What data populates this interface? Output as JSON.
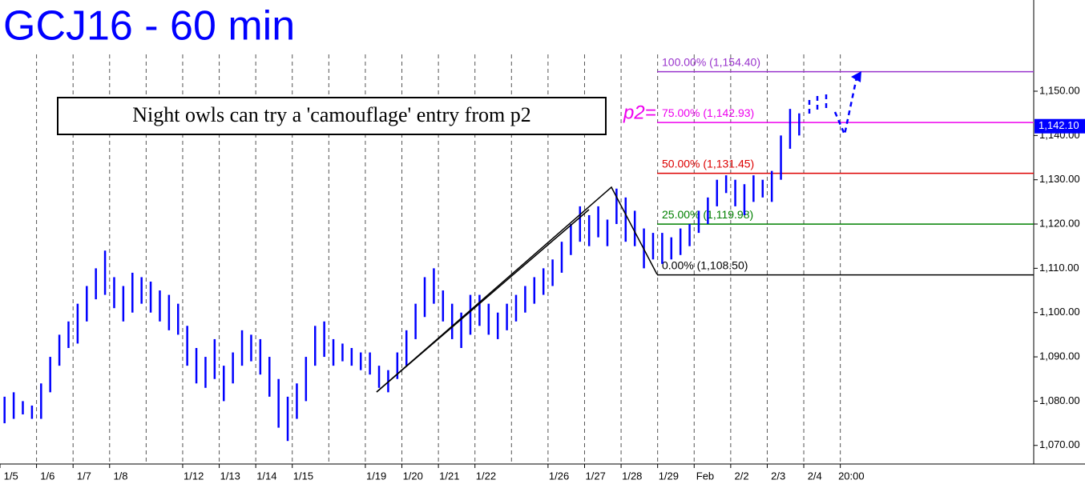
{
  "chart_data": {
    "type": "hilo",
    "title": "GCJ16 - 60 min",
    "annotation": "Night owls can try a 'camouflage' entry from p2",
    "pivot_label": "p2=",
    "color": "#0000ff",
    "ylim": [
      1065.8,
      1170.6
    ],
    "yticks": [
      {
        "value": 1070,
        "label": "1,070.00"
      },
      {
        "value": 1080,
        "label": "1,080.00"
      },
      {
        "value": 1090,
        "label": "1,090.00"
      },
      {
        "value": 1100,
        "label": "1,100.00"
      },
      {
        "value": 1110,
        "label": "1,110.00"
      },
      {
        "value": 1120,
        "label": "1,120.00"
      },
      {
        "value": 1130,
        "label": "1,130.00"
      },
      {
        "value": 1140,
        "label": "1,140.00"
      },
      {
        "value": 1150,
        "label": "1,150.00"
      }
    ],
    "last_price": {
      "value": 1142.1,
      "label": "1,142.10"
    },
    "levels": [
      {
        "label": "100.00% (1,154.40)",
        "value": 1154.4,
        "color": "#9933cc"
      },
      {
        "label": "75.00% (1,142.93)",
        "value": 1142.93,
        "color": "#ee00ee"
      },
      {
        "label": "50.00% (1,131.45)",
        "value": 1131.45,
        "color": "#dd0000"
      },
      {
        "label": "25.00% (1,119.98)",
        "value": 1119.98,
        "color": "#008000"
      },
      {
        "label": "0.00% (1,108.50)",
        "value": 1108.5,
        "color": "#000000"
      }
    ],
    "categories": [
      "1/5",
      null,
      null,
      null,
      "1/6",
      null,
      null,
      null,
      "1/7",
      null,
      null,
      null,
      "1/8",
      null,
      null,
      null,
      null,
      null,
      null,
      null,
      "1/12",
      null,
      null,
      null,
      "1/13",
      null,
      null,
      null,
      "1/14",
      null,
      null,
      null,
      "1/15",
      null,
      null,
      null,
      null,
      null,
      null,
      null,
      "1/19",
      null,
      null,
      null,
      "1/20",
      null,
      null,
      null,
      "1/21",
      null,
      null,
      null,
      "1/22",
      null,
      null,
      null,
      null,
      null,
      null,
      null,
      "1/26",
      null,
      null,
      null,
      "1/27",
      null,
      null,
      null,
      "1/28",
      null,
      null,
      null,
      "1/29",
      null,
      null,
      null,
      "Feb",
      null,
      null,
      null,
      "2/2",
      null,
      null,
      null,
      "2/3",
      null,
      null,
      null,
      "2/4",
      null,
      null,
      null,
      "20:00",
      null,
      null,
      null,
      null,
      null,
      null,
      null,
      null,
      null,
      null,
      null,
      null,
      null,
      null,
      null,
      null,
      null,
      null,
      null,
      null
    ],
    "low": [
      1075,
      1076,
      1077,
      1076,
      1076,
      1082,
      1088,
      1092,
      1093,
      1098,
      1103,
      1104,
      1101,
      1098,
      1100,
      1102,
      1100,
      1098,
      1096,
      1095,
      1088,
      1084,
      1083,
      1085,
      1080,
      1084,
      1088,
      1089,
      1086,
      1081,
      1074,
      1071,
      1076,
      1080,
      1088,
      1090,
      1088,
      1089,
      1088,
      1087,
      1086,
      1083,
      1082,
      1085,
      1088,
      1094,
      1099,
      1102,
      1098,
      1094,
      1092,
      1095,
      1097,
      1095,
      1094,
      1096,
      1098,
      1100,
      1102,
      1104,
      1106,
      1109,
      1113,
      1116,
      1115,
      1117,
      1115,
      1120,
      1116,
      1115,
      1110,
      1112,
      1111,
      1112,
      1113,
      1115,
      1118,
      1120,
      1124,
      1127,
      1124,
      1122,
      1125,
      1126,
      1125,
      1130,
      1137,
      1140,
      null,
      null,
      null,
      null,
      null,
      null,
      null,
      null,
      null,
      null,
      null,
      null,
      null,
      null,
      null,
      null,
      null,
      null,
      null,
      null,
      null,
      null,
      null,
      null,
      null
    ],
    "high": [
      1081,
      1082,
      1080,
      1079,
      1084,
      1090,
      1095,
      1098,
      1102,
      1106,
      1110,
      1114,
      1108,
      1106,
      1109,
      1108,
      1107,
      1105,
      1104,
      1102,
      1097,
      1092,
      1090,
      1094,
      1088,
      1091,
      1096,
      1095,
      1094,
      1090,
      1085,
      1081,
      1084,
      1090,
      1097,
      1098,
      1094,
      1093,
      1092,
      1091,
      1091,
      1088,
      1087,
      1091,
      1096,
      1102,
      1108,
      1110,
      1105,
      1102,
      1100,
      1104,
      1104,
      1102,
      1100,
      1102,
      1104,
      1106,
      1108,
      1110,
      1112,
      1116,
      1120,
      1124,
      1122,
      1124,
      1121,
      1128,
      1126,
      1123,
      1119,
      1118,
      1118,
      1117,
      1119,
      1120,
      1123,
      1126,
      1130,
      1131,
      1130,
      1129,
      1131,
      1130,
      1132,
      1140,
      1146,
      1145,
      null,
      null,
      null,
      null,
      null,
      null,
      null,
      null,
      null,
      null,
      null,
      null,
      null,
      null,
      null,
      null,
      null,
      null,
      null,
      null,
      null,
      null,
      null,
      null,
      null
    ]
  }
}
